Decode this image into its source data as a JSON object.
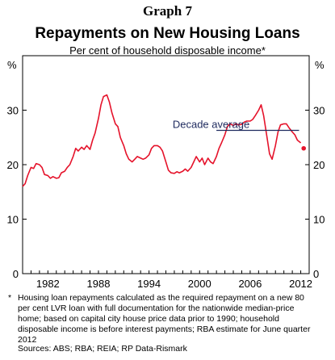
{
  "header": {
    "graph_number": "Graph 7"
  },
  "chart_data": {
    "type": "line",
    "title": "Repayments on New Housing Loans",
    "subtitle": "Per cent of household disposable income*",
    "ylabel_left": "%",
    "ylabel_right": "%",
    "xlim": [
      1979,
      2013
    ],
    "ylim": [
      0,
      40
    ],
    "y_ticks": [
      "0",
      "10",
      "20",
      "30"
    ],
    "y_tick_values": [
      0,
      10,
      20,
      30
    ],
    "x_ticks": [
      "1982",
      "1988",
      "1994",
      "2000",
      "2006",
      "2012"
    ],
    "x_tick_values": [
      1982,
      1988,
      1994,
      2000,
      2006,
      2012
    ],
    "grid": false,
    "series": [
      {
        "color": "#e5132b",
        "x": [
          1979.0,
          1979.3,
          1979.6,
          1980.0,
          1980.3,
          1980.6,
          1981.0,
          1981.3,
          1981.6,
          1982.0,
          1982.3,
          1982.6,
          1983.0,
          1983.3,
          1983.6,
          1984.0,
          1984.3,
          1984.6,
          1985.0,
          1985.3,
          1985.6,
          1986.0,
          1986.3,
          1986.6,
          1987.0,
          1987.3,
          1987.6,
          1988.0,
          1988.3,
          1988.6,
          1989.0,
          1989.3,
          1989.6,
          1990.0,
          1990.3,
          1990.6,
          1991.0,
          1991.3,
          1991.6,
          1992.0,
          1992.3,
          1992.6,
          1993.0,
          1993.3,
          1993.6,
          1994.0,
          1994.3,
          1994.6,
          1995.0,
          1995.3,
          1995.6,
          1996.0,
          1996.3,
          1996.6,
          1997.0,
          1997.3,
          1997.6,
          1998.0,
          1998.3,
          1998.6,
          1999.0,
          1999.3,
          1999.6,
          2000.0,
          2000.3,
          2000.6,
          2001.0,
          2001.3,
          2001.6,
          2002.0,
          2002.3,
          2002.6,
          2003.0,
          2003.3,
          2003.6,
          2004.0,
          2004.3,
          2004.6,
          2005.0,
          2005.3,
          2005.6,
          2006.0,
          2006.3,
          2006.6,
          2007.0,
          2007.3,
          2007.6,
          2008.0,
          2008.3,
          2008.6,
          2009.0,
          2009.3,
          2009.6,
          2010.0,
          2010.3,
          2010.6,
          2011.0,
          2011.3,
          2011.6,
          2012.0
        ],
        "values": [
          16.0,
          16.5,
          18.0,
          19.5,
          19.3,
          20.2,
          20.0,
          19.5,
          18.2,
          18.0,
          17.5,
          17.8,
          17.5,
          17.6,
          18.5,
          18.8,
          19.5,
          20.0,
          21.5,
          23.0,
          22.5,
          23.2,
          22.8,
          23.5,
          22.8,
          24.5,
          25.8,
          28.5,
          31.0,
          32.5,
          32.8,
          31.5,
          29.5,
          27.5,
          27.0,
          25.0,
          23.5,
          22.0,
          21.0,
          20.5,
          21.0,
          21.5,
          21.2,
          21.0,
          21.2,
          21.8,
          23.0,
          23.5,
          23.5,
          23.2,
          22.5,
          20.5,
          19.0,
          18.5,
          18.4,
          18.7,
          18.5,
          18.8,
          19.2,
          18.8,
          19.5,
          20.5,
          21.5,
          20.5,
          21.2,
          20.0,
          21.2,
          20.5,
          20.2,
          21.5,
          23.0,
          24.0,
          25.5,
          27.0,
          27.5,
          27.2,
          27.5,
          27.3,
          27.4,
          27.8,
          28.0,
          28.0,
          28.3,
          29.0,
          30.0,
          31.0,
          29.0,
          25.0,
          22.0,
          21.0,
          23.5,
          26.0,
          27.3,
          27.5,
          27.5,
          26.8,
          26.0,
          25.5,
          24.5,
          24.0
        ]
      },
      {
        "name": "Decade average",
        "color": "#1e2a5e",
        "x": [
          2002.0,
          2011.8
        ],
        "values": [
          26.3,
          26.3
        ]
      }
    ],
    "estimate_point": {
      "x": 2012.35,
      "value": 23.0,
      "color": "#e5132b"
    },
    "annotations": [
      {
        "text": "Decade average",
        "x": 1996.8,
        "value": 27.5
      }
    ]
  },
  "footnote": {
    "marker": "*",
    "text": "Housing loan repayments calculated as the required repayment on a new 80 per cent LVR loan with full documentation for the nationwide median-price home; based on capital city house price data prior to 1990; household disposable income is before interest payments; RBA estimate for June quarter 2012"
  },
  "sources": "Sources: ABS; RBA; REIA; RP Data-Rismark"
}
